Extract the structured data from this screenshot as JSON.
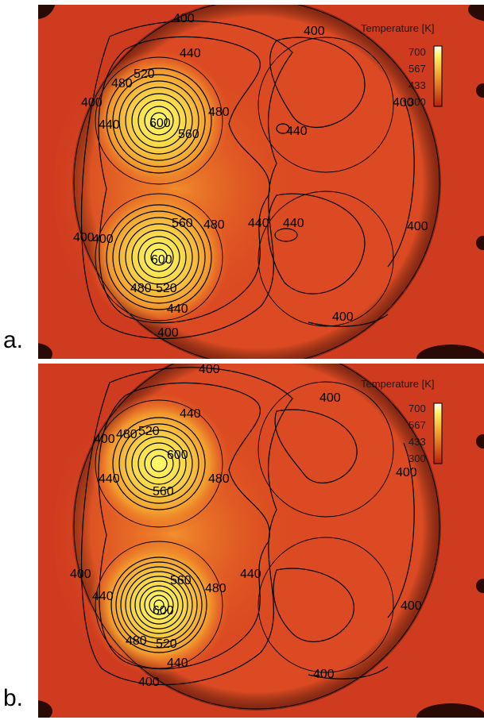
{
  "panels": [
    {
      "letter": "a.",
      "legend": {
        "title": "Temperature [K]",
        "ticks": [
          "700",
          "567",
          "433",
          "300"
        ]
      },
      "labels": [
        "400",
        "400",
        "440",
        "480",
        "520",
        "400",
        "440",
        "600",
        "560",
        "480",
        "400",
        "440",
        "400",
        "560",
        "480",
        "440",
        "440",
        "400",
        "400",
        "600",
        "480",
        "520",
        "440",
        "400",
        "400"
      ]
    },
    {
      "letter": "b.",
      "legend": {
        "title": "Temperature [K]",
        "ticks": [
          "700",
          "567",
          "433",
          "300"
        ]
      },
      "labels": [
        "400",
        "400",
        "440",
        "400",
        "480",
        "520",
        "600",
        "440",
        "480",
        "560",
        "400",
        "400",
        "560",
        "480",
        "440",
        "440",
        "600",
        "480",
        "520",
        "440",
        "400",
        "400",
        "400"
      ]
    }
  ],
  "colors": {
    "background": "#cf3b1f",
    "hot": "#fffb6a",
    "warm": "#f39c2c",
    "iso_line": "#000000"
  }
}
